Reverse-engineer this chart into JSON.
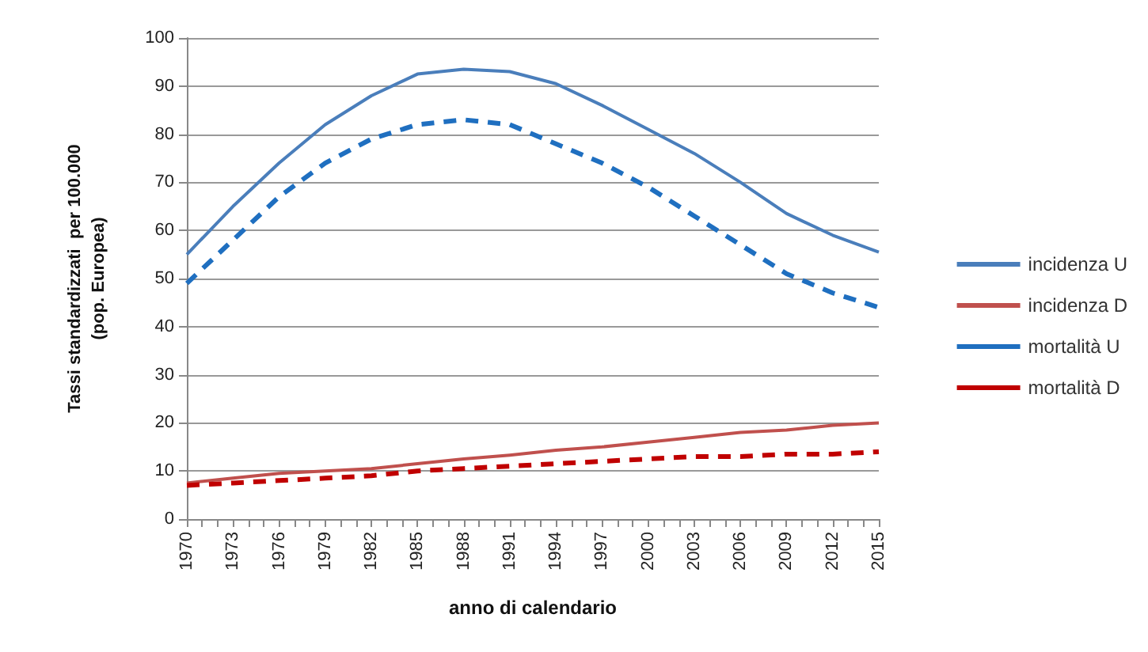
{
  "chart_data": {
    "type": "line",
    "xlabel": "anno di calendario",
    "ylabel": "Tassi standardizzati  per 100.000\n(pop. Europea)",
    "x": [
      1970,
      1973,
      1976,
      1979,
      1982,
      1985,
      1988,
      1991,
      1994,
      1997,
      2000,
      2003,
      2006,
      2009,
      2012,
      2015
    ],
    "series": [
      {
        "name": "incidenza U",
        "color": "#4a7ebb",
        "line_style": "solid",
        "values": [
          55,
          65,
          74,
          82,
          88,
          92.5,
          93.5,
          93,
          90.5,
          86,
          81,
          76,
          70,
          63.5,
          59,
          55.5
        ]
      },
      {
        "name": "incidenza D",
        "color": "#c0504d",
        "line_style": "solid",
        "values": [
          7.5,
          8.5,
          9.5,
          10,
          10.5,
          11.5,
          12.5,
          13.3,
          14.3,
          15,
          16,
          17,
          18,
          18.5,
          19.5,
          20
        ]
      },
      {
        "name": "mortalità U",
        "color": "#1f6fc0",
        "line_style": "dashed",
        "values": [
          49,
          58,
          67,
          74,
          79,
          82,
          83,
          82,
          78,
          74,
          69,
          63,
          57,
          51,
          47,
          44
        ]
      },
      {
        "name": "mortalità D",
        "color": "#c00000",
        "line_style": "dashed",
        "values": [
          7,
          7.5,
          8,
          8.5,
          9,
          10,
          10.5,
          11,
          11.5,
          12,
          12.5,
          13,
          13,
          13.5,
          13.5,
          14
        ]
      }
    ],
    "xlim": [
      1970,
      2015
    ],
    "xticks": [
      1970,
      {
        "value": 1971,
        "label": null
      },
      {
        "value": 1972,
        "label": null
      },
      1973,
      {
        "value": 1974,
        "label": null
      },
      {
        "value": 1975,
        "label": null
      },
      1976,
      {
        "value": 1977,
        "label": null
      },
      {
        "value": 1978,
        "label": null
      },
      1979,
      {
        "value": 1980,
        "label": null
      },
      {
        "value": 1981,
        "label": null
      },
      1982,
      {
        "value": 1983,
        "label": null
      },
      {
        "value": 1984,
        "label": null
      },
      1985,
      {
        "value": 1986,
        "label": null
      },
      {
        "value": 1987,
        "label": null
      },
      1988,
      {
        "value": 1989,
        "label": null
      },
      {
        "value": 1990,
        "label": null
      },
      1991,
      {
        "value": 1992,
        "label": null
      },
      {
        "value": 1993,
        "label": null
      },
      1994,
      {
        "value": 1995,
        "label": null
      },
      {
        "value": 1996,
        "label": null
      },
      1997,
      {
        "value": 1998,
        "label": null
      },
      {
        "value": 1999,
        "label": null
      },
      2000,
      {
        "value": 2001,
        "label": null
      },
      {
        "value": 2002,
        "label": null
      },
      2003,
      {
        "value": 2004,
        "label": null
      },
      {
        "value": 2005,
        "label": null
      },
      2006,
      {
        "value": 2007,
        "label": null
      },
      {
        "value": 2008,
        "label": null
      },
      2009,
      {
        "value": 2010,
        "label": null
      },
      {
        "value": 2011,
        "label": null
      },
      2012,
      {
        "value": 2013,
        "label": null
      },
      {
        "value": 2014,
        "label": null
      },
      2015
    ],
    "ylim": [
      0,
      100
    ],
    "yticks": [
      0,
      10,
      20,
      30,
      40,
      50,
      60,
      70,
      80,
      90,
      100
    ],
    "grid": "y",
    "legend": "right",
    "marker": "none"
  }
}
